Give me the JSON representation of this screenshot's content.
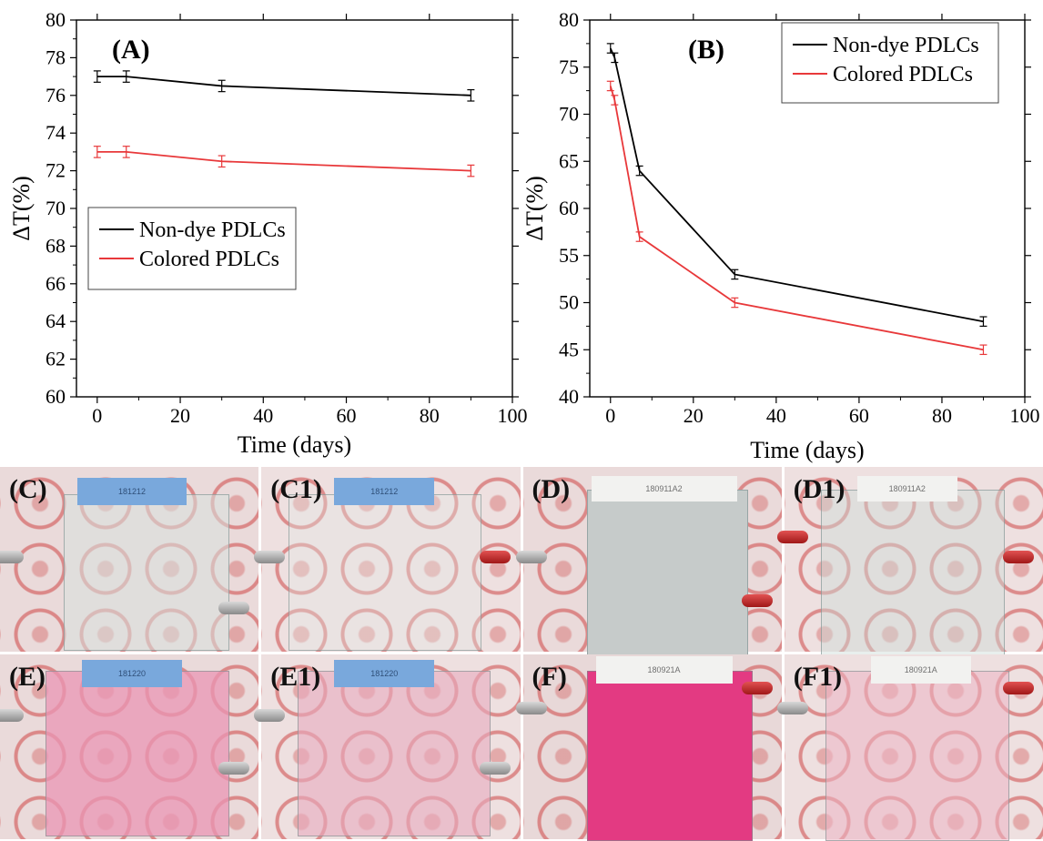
{
  "chart_data": [
    {
      "type": "line",
      "panel": "(A)",
      "xlabel": "Time (days)",
      "ylabel": "ΔT(%)",
      "xlim": [
        -5,
        100
      ],
      "ylim": [
        60,
        80
      ],
      "xticks": [
        0,
        20,
        40,
        60,
        80,
        100
      ],
      "yticks": [
        60,
        62,
        64,
        66,
        68,
        70,
        72,
        74,
        76,
        78,
        80
      ],
      "legend_position": "middle-left",
      "x": [
        0,
        7,
        30,
        90
      ],
      "series": [
        {
          "name": "Non-dye PDLCs",
          "color": "#000000",
          "values": [
            77.0,
            77.0,
            76.5,
            76.0
          ],
          "error": [
            0.3,
            0.3,
            0.3,
            0.3
          ]
        },
        {
          "name": "Colored PDLCs",
          "color": "#e8383a",
          "values": [
            73.0,
            73.0,
            72.5,
            72.0
          ],
          "error": [
            0.3,
            0.3,
            0.3,
            0.3
          ]
        }
      ]
    },
    {
      "type": "line",
      "panel": "(B)",
      "xlabel": "Time (days)",
      "ylabel": "ΔT(%)",
      "xlim": [
        -5,
        100
      ],
      "ylim": [
        40,
        80
      ],
      "xticks": [
        0,
        20,
        40,
        60,
        80,
        100
      ],
      "yticks": [
        40,
        45,
        50,
        55,
        60,
        65,
        70,
        75,
        80
      ],
      "legend_position": "top-right",
      "x": [
        0,
        1,
        7,
        30,
        90
      ],
      "series": [
        {
          "name": "Non-dye PDLCs",
          "color": "#000000",
          "values": [
            77.0,
            76.0,
            64.0,
            53.0,
            48.0
          ],
          "error": [
            0.5,
            0.5,
            0.5,
            0.5,
            0.5
          ]
        },
        {
          "name": "Colored PDLCs",
          "color": "#e8383a",
          "values": [
            73.0,
            71.5,
            57.0,
            50.0,
            45.0
          ],
          "error": [
            0.5,
            0.5,
            0.5,
            0.5,
            0.5
          ]
        }
      ]
    }
  ],
  "photos": [
    {
      "label": "(C)",
      "tag": "181212"
    },
    {
      "label": "(C1)",
      "tag": "181212"
    },
    {
      "label": "(D)",
      "tag": "180911A2"
    },
    {
      "label": "(D1)",
      "tag": "180911A2"
    },
    {
      "label": "(E)",
      "tag": "181220"
    },
    {
      "label": "(E1)",
      "tag": "181220"
    },
    {
      "label": "(F)",
      "tag": "180921A"
    },
    {
      "label": "(F1)",
      "tag": "180921A"
    }
  ]
}
